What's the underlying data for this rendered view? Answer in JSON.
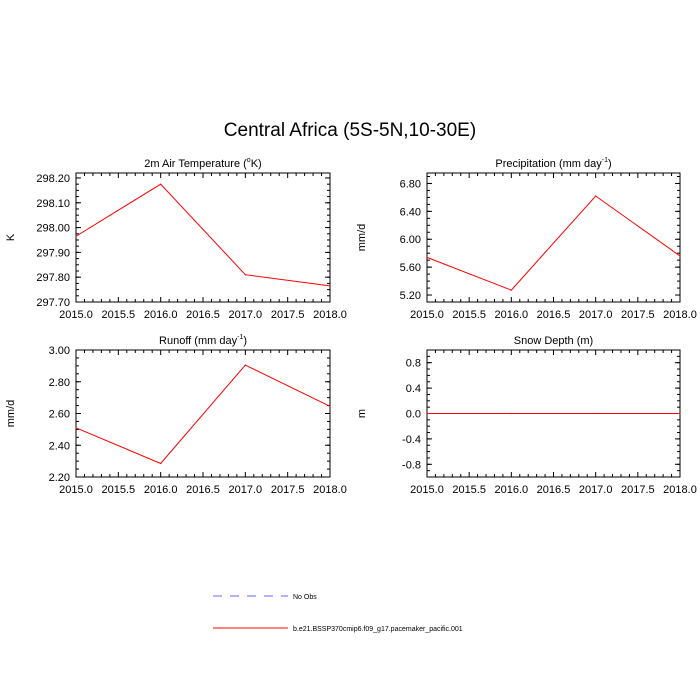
{
  "title": "Central Africa (5S-5N,10-30E)",
  "legend": {
    "items": [
      {
        "label": "No Obs",
        "color": "#6666ff",
        "dash": true
      },
      {
        "label": "b.e21.BSSP370cmip6.f09_g17.pacemaker_pacific.001",
        "color": "#ff0000",
        "dash": false
      }
    ]
  },
  "chart_data": [
    {
      "type": "line",
      "title": "2m Air Temperature (",
      "title_sup": "o",
      "title_tail": "K)",
      "xlabel": "",
      "ylabel": "K",
      "xlim": [
        2015.0,
        2018.0
      ],
      "ylim": [
        297.7,
        298.22
      ],
      "xticks": [
        "2015.0",
        "2015.5",
        "2016.0",
        "2016.5",
        "2017.0",
        "2017.5",
        "2018.0"
      ],
      "yticks": [
        297.7,
        297.8,
        297.9,
        298.0,
        298.1,
        298.2
      ],
      "ytick_labels": [
        "297.70",
        "297.80",
        "297.90",
        "298.00",
        "298.10",
        "298.20"
      ],
      "series": [
        {
          "x": [
            2015,
            2016,
            2017,
            2018
          ],
          "values": [
            297.965,
            298.175,
            297.81,
            297.765
          ],
          "color": "#ff0000"
        }
      ]
    },
    {
      "type": "line",
      "title": "Precipitation (mm day",
      "title_sup": "-1",
      "title_tail": ")",
      "xlabel": "",
      "ylabel": "mm/d",
      "xlim": [
        2015.0,
        2018.0
      ],
      "ylim": [
        5.1,
        6.95
      ],
      "xticks": [
        "2015.0",
        "2015.5",
        "2016.0",
        "2016.5",
        "2017.0",
        "2017.5",
        "2018.0"
      ],
      "yticks": [
        5.2,
        5.6,
        6.0,
        6.4,
        6.8
      ],
      "ytick_labels": [
        "5.20",
        "5.60",
        "6.00",
        "6.40",
        "6.80"
      ],
      "series": [
        {
          "x": [
            2015,
            2016,
            2017,
            2018
          ],
          "values": [
            5.74,
            5.27,
            6.62,
            5.76
          ],
          "color": "#ff0000"
        }
      ]
    },
    {
      "type": "line",
      "title": "Runoff (mm day",
      "title_sup": "-1",
      "title_tail": ")",
      "xlabel": "",
      "ylabel": "mm/d",
      "xlim": [
        2015.0,
        2018.0
      ],
      "ylim": [
        2.2,
        3.0
      ],
      "xticks": [
        "2015.0",
        "2015.5",
        "2016.0",
        "2016.5",
        "2017.0",
        "2017.5",
        "2018.0"
      ],
      "yticks": [
        2.2,
        2.4,
        2.6,
        2.8,
        3.0
      ],
      "ytick_labels": [
        "2.20",
        "2.40",
        "2.60",
        "2.80",
        "3.00"
      ],
      "series": [
        {
          "x": [
            2015,
            2016,
            2017,
            2018
          ],
          "values": [
            2.51,
            2.285,
            2.905,
            2.645
          ],
          "color": "#ff0000"
        }
      ]
    },
    {
      "type": "line",
      "title": "Snow Depth (m)",
      "title_sup": "",
      "title_tail": "",
      "xlabel": "",
      "ylabel": "m",
      "xlim": [
        2015.0,
        2018.0
      ],
      "ylim": [
        -1.0,
        1.0
      ],
      "xticks": [
        "2015.0",
        "2015.5",
        "2016.0",
        "2016.5",
        "2017.0",
        "2017.5",
        "2018.0"
      ],
      "yticks": [
        -0.8,
        -0.4,
        0.0,
        0.4,
        0.8
      ],
      "ytick_labels": [
        "-0.8",
        "-0.4",
        "0.0",
        "0.4",
        "0.8"
      ],
      "series": [
        {
          "x": [
            2015,
            2016,
            2017,
            2018
          ],
          "values": [
            0.0,
            0.0,
            0.0,
            0.0
          ],
          "color": "#ff0000"
        }
      ]
    }
  ]
}
